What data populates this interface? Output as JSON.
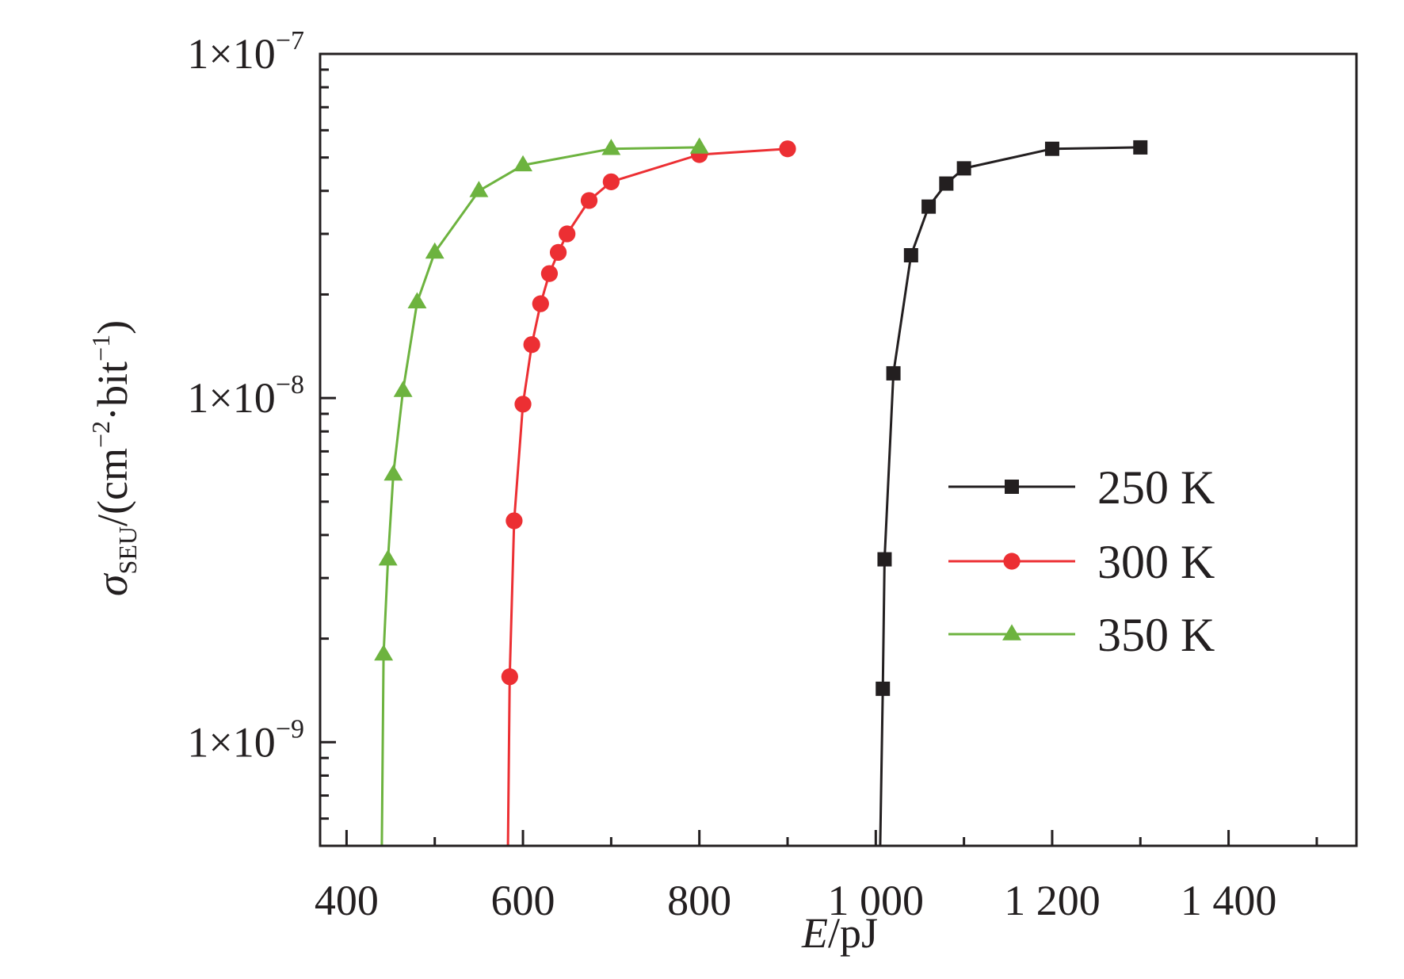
{
  "chart_data": {
    "type": "line",
    "title": "",
    "xlabel": {
      "var": "E",
      "unit": "/pJ"
    },
    "ylabel": {
      "sym": "σ",
      "sub": "SEU",
      "pre": "/(cm",
      "sup1": "−2",
      "mid": "·bit",
      "sup2": "−1",
      "post": ")"
    },
    "x_axis": {
      "scale": "linear",
      "range": [
        370,
        1545
      ],
      "ticks": [
        400,
        600,
        800,
        1000,
        1200,
        1400
      ],
      "tick_labels": [
        "400",
        "600",
        "800",
        "1 000",
        "1 200",
        "1 400"
      ]
    },
    "y_axis": {
      "scale": "log",
      "range": [
        5e-10,
        1e-07
      ],
      "ticks": [
        1e-09,
        1e-08,
        1e-07
      ],
      "tick_labels": [
        {
          "base": "1×10",
          "exp": "−9"
        },
        {
          "base": "1×10",
          "exp": "−8"
        },
        {
          "base": "1×10",
          "exp": "−7"
        }
      ]
    },
    "grid": false,
    "legend_position": "center-right",
    "series": [
      {
        "name": "250 K",
        "color": "#231f20",
        "marker": "square",
        "points": [
          [
            1005,
            5e-10
          ],
          [
            1008,
            1.43e-09
          ],
          [
            1010,
            3.4e-09
          ],
          [
            1020,
            1.18e-08
          ],
          [
            1040,
            2.6e-08
          ],
          [
            1060,
            3.6e-08
          ],
          [
            1080,
            4.2e-08
          ],
          [
            1100,
            4.65e-08
          ],
          [
            1200,
            5.3e-08
          ],
          [
            1300,
            5.35e-08
          ]
        ],
        "marked": [
          false,
          true,
          true,
          true,
          true,
          true,
          true,
          true,
          true,
          true
        ]
      },
      {
        "name": "300 K",
        "color": "#ec2f33",
        "marker": "circle",
        "points": [
          [
            583,
            5e-10
          ],
          [
            585,
            1.55e-09
          ],
          [
            590,
            4.4e-09
          ],
          [
            600,
            9.6e-09
          ],
          [
            610,
            1.43e-08
          ],
          [
            620,
            1.88e-08
          ],
          [
            630,
            2.3e-08
          ],
          [
            640,
            2.65e-08
          ],
          [
            650,
            3e-08
          ],
          [
            675,
            3.75e-08
          ],
          [
            700,
            4.25e-08
          ],
          [
            800,
            5.1e-08
          ],
          [
            900,
            5.3e-08
          ]
        ],
        "marked": [
          false,
          true,
          true,
          true,
          true,
          true,
          true,
          true,
          true,
          true,
          true,
          true,
          true
        ]
      },
      {
        "name": "350 K",
        "color": "#6db33f",
        "marker": "triangle",
        "points": [
          [
            440,
            5e-10
          ],
          [
            442,
            1.8e-09
          ],
          [
            447,
            3.4e-09
          ],
          [
            453,
            6e-09
          ],
          [
            464,
            1.05e-08
          ],
          [
            480,
            1.9e-08
          ],
          [
            500,
            2.65e-08
          ],
          [
            550,
            4e-08
          ],
          [
            600,
            4.75e-08
          ],
          [
            700,
            5.3e-08
          ],
          [
            800,
            5.35e-08
          ]
        ],
        "marked": [
          false,
          true,
          true,
          true,
          true,
          true,
          true,
          true,
          true,
          true,
          true
        ]
      }
    ]
  }
}
